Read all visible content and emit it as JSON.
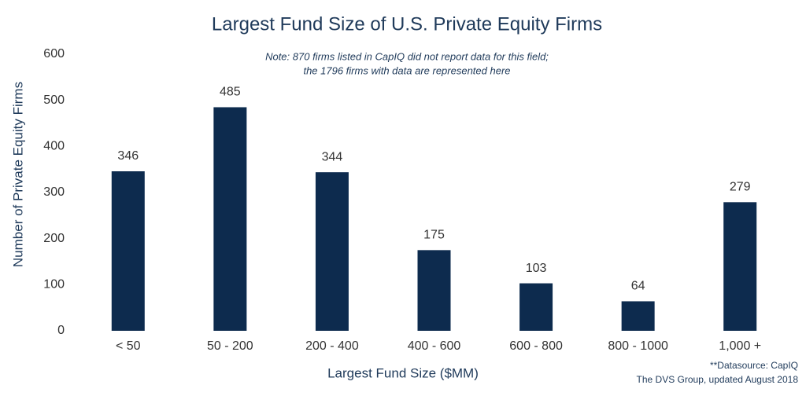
{
  "chart_data": {
    "type": "bar",
    "title": "Largest Fund Size of U.S. Private Equity Firms",
    "note": [
      "Note: 870 firms listed in CapIQ did not report data for this field;",
      "the 1796 firms with data are represented here"
    ],
    "x_label": "Largest Fund Size ($MM)",
    "y_label": "Number of Private Equity Firms",
    "footnote": [
      "**Datasource: CapIQ",
      "The DVS Group, updated August 2018"
    ],
    "categories": [
      "< 50",
      "50 - 200",
      "200 - 400",
      "400 - 600",
      "600 - 800",
      "800 - 1000",
      "1,000 +"
    ],
    "values": [
      346,
      485,
      344,
      175,
      103,
      64,
      279
    ],
    "color": "#0d2b4e",
    "ylim": [
      0,
      600
    ],
    "yticks": [
      0,
      100,
      200,
      300,
      400,
      500,
      600
    ],
    "grid": false
  }
}
